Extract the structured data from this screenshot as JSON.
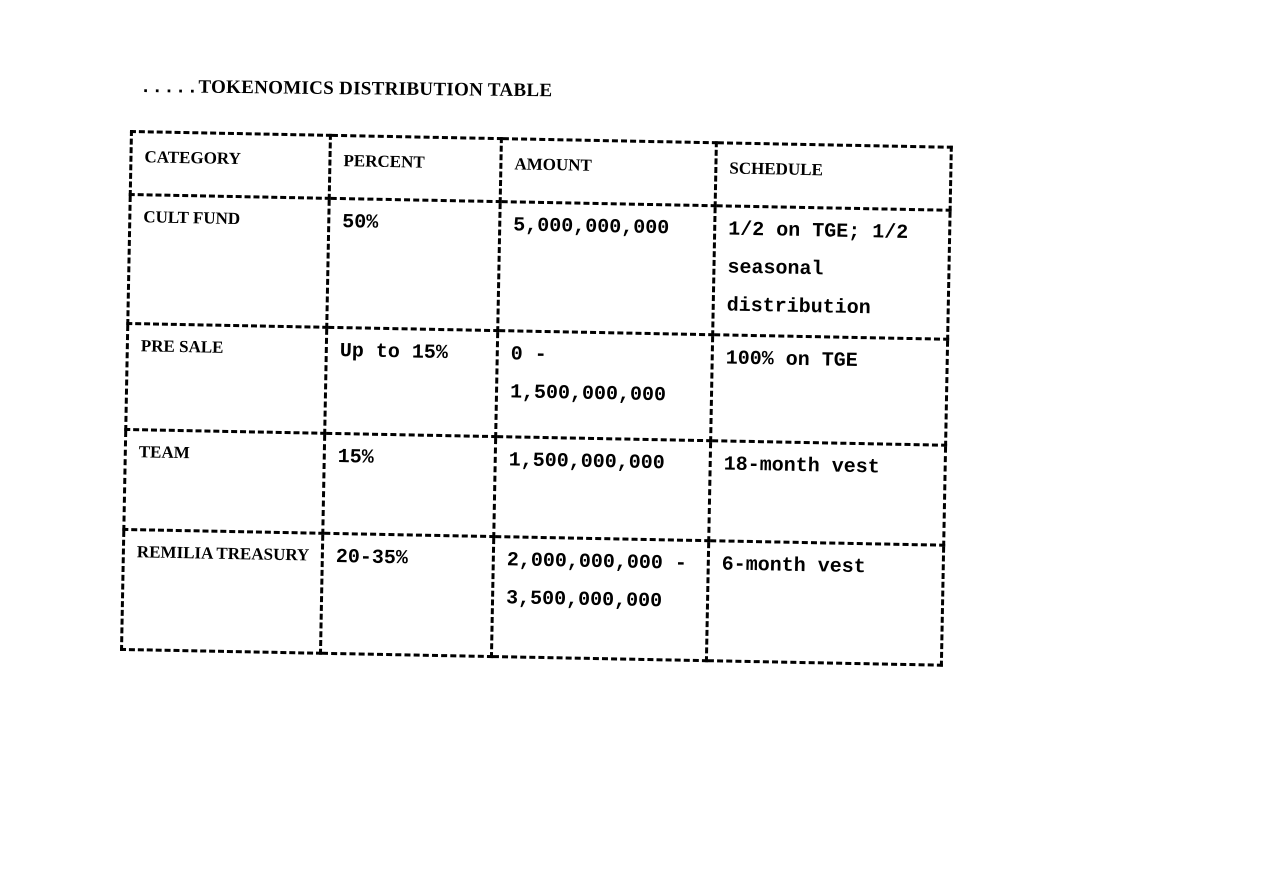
{
  "title": {
    "prefix": ".....",
    "text": "TOKENOMICS DISTRIBUTION TABLE"
  },
  "table": {
    "headers": [
      "CATEGORY",
      "PERCENT",
      "AMOUNT",
      "SCHEDULE"
    ],
    "rows": [
      {
        "category": "CULT FUND",
        "percent": "50%",
        "amount": "5,000,000,000",
        "schedule": "1/2 on TGE; 1/2 seasonal distribution"
      },
      {
        "category": "PRE SALE",
        "percent": "Up to 15%",
        "amount": "0 - 1,500,000,000",
        "schedule": "100% on TGE"
      },
      {
        "category": "TEAM",
        "percent": "15%",
        "amount": "1,500,000,000",
        "schedule": "18-month vest"
      },
      {
        "category": "REMILIA TREASURY",
        "percent": "20-35%",
        "amount": "2,000,000,000 - 3,500,000,000",
        "schedule": "6-month vest"
      }
    ]
  }
}
